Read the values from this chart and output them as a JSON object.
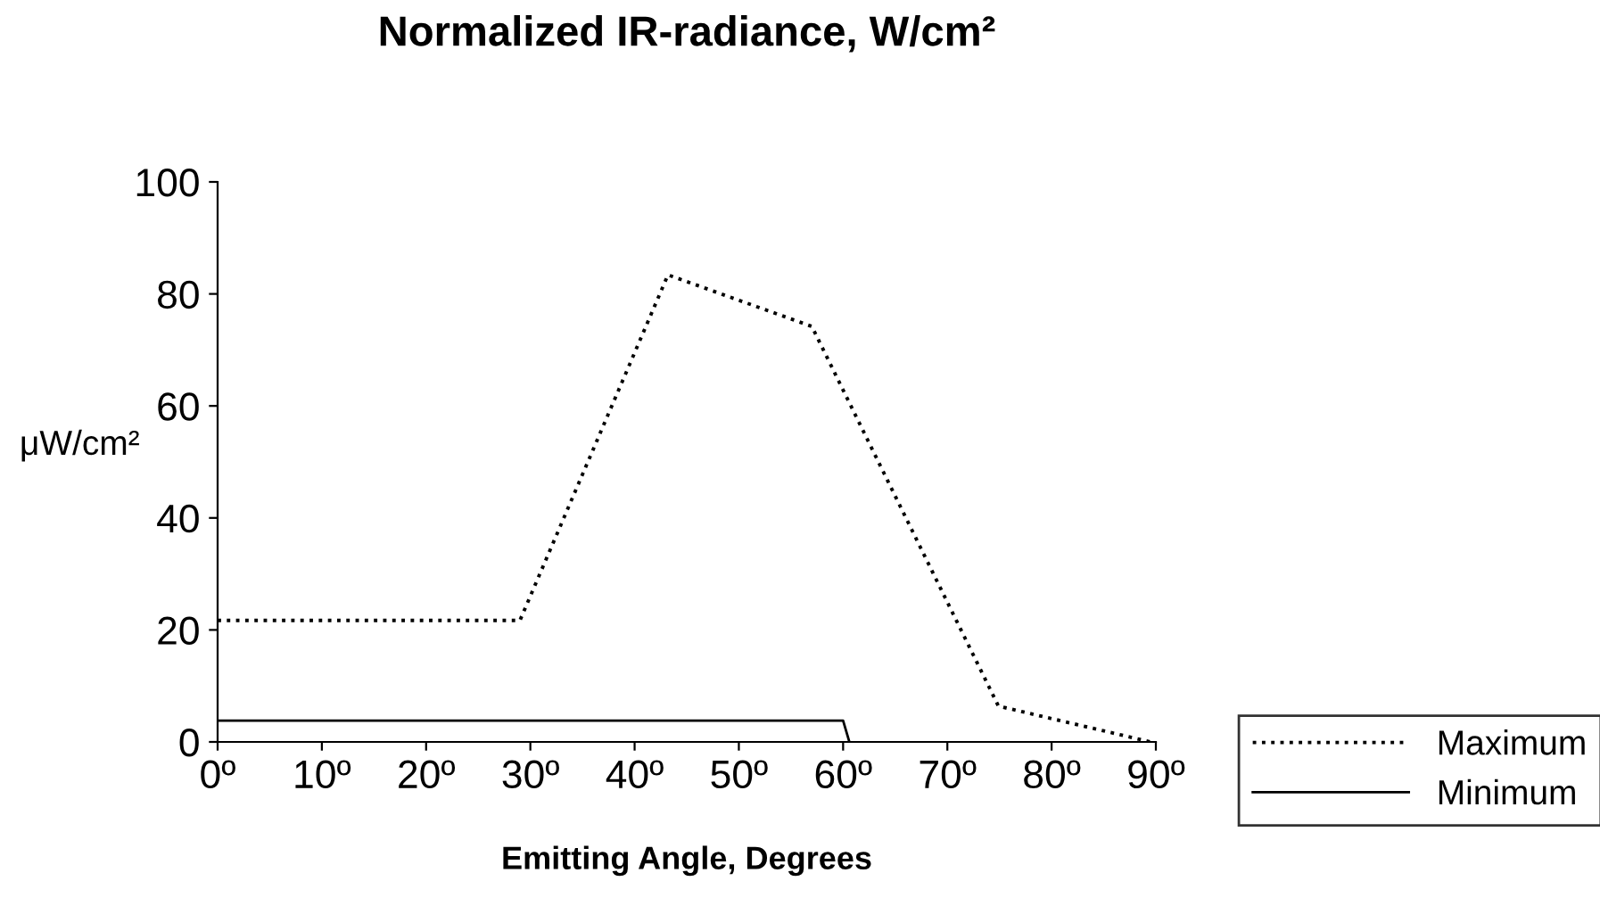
{
  "chart_data": {
    "type": "line",
    "title": "Normalized IR-radiance, W/cm²",
    "xlabel": "Emitting Angle, Degrees",
    "ylabel": "μW/cm²",
    "series": [
      {
        "name": "Maximum",
        "color": "#000000",
        "line_style": "dotted",
        "x": [
          0,
          29,
          43.2,
          57,
          74.9,
          89.5
        ],
        "values": [
          21.7,
          21.7,
          83.4,
          74.2,
          6.4,
          0
        ]
      },
      {
        "name": "Minimum",
        "color": "#000000",
        "line_style": "solid",
        "x": [
          0,
          60,
          60.6
        ],
        "values": [
          3.8,
          3.8,
          0
        ]
      }
    ],
    "xlim": [
      0,
      90
    ],
    "xticks": [
      {
        "value": 0,
        "label": "0º"
      },
      {
        "value": 10,
        "label": "10º"
      },
      {
        "value": 20,
        "label": "20º"
      },
      {
        "value": 30,
        "label": "30º"
      },
      {
        "value": 40,
        "label": "40º"
      },
      {
        "value": 50,
        "label": "50º"
      },
      {
        "value": 60,
        "label": "60º"
      },
      {
        "value": 70,
        "label": "70º"
      },
      {
        "value": 80,
        "label": "80º"
      },
      {
        "value": 90,
        "label": "90º"
      }
    ],
    "ylim": [
      0,
      100
    ],
    "yticks": [
      0,
      20,
      40,
      60,
      80,
      100
    ],
    "grid": false,
    "legend": "bottom right"
  }
}
